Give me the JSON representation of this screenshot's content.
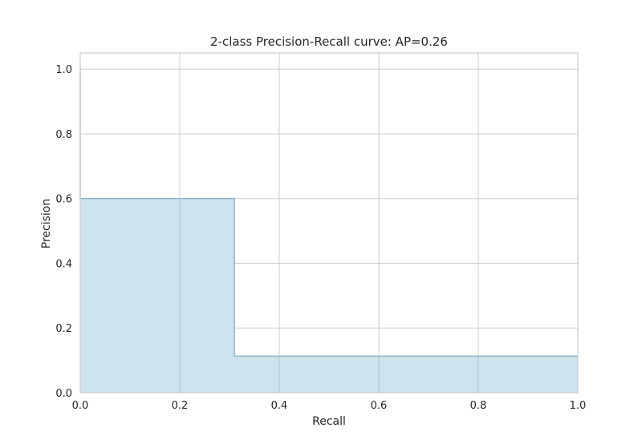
{
  "chart_data": {
    "type": "area",
    "title": "2-class Precision-Recall curve: AP=0.26",
    "xlabel": "Recall",
    "ylabel": "Precision",
    "xlim": [
      0.0,
      1.0
    ],
    "ylim": [
      0.0,
      1.05
    ],
    "xticks": [
      0.0,
      0.2,
      0.4,
      0.6,
      0.8,
      1.0
    ],
    "yticks": [
      0.0,
      0.2,
      0.4,
      0.6,
      0.8,
      1.0
    ],
    "xtick_labels": [
      "0.0",
      "0.2",
      "0.4",
      "0.6",
      "0.8",
      "1.0"
    ],
    "ytick_labels": [
      "0.0",
      "0.2",
      "0.4",
      "0.6",
      "0.8",
      "1.0"
    ],
    "grid": true,
    "step": "post",
    "series": [
      {
        "recall": [
          0.0,
          0.0,
          0.31,
          0.31,
          1.0
        ],
        "precision": [
          1.0,
          0.6,
          0.6,
          0.113,
          0.113
        ],
        "fill_color": "#c8e0ec",
        "line_color": "#8fb3c7"
      }
    ]
  },
  "colors": {
    "grid": "#cccccc",
    "fill": "#c8e0ec",
    "edge": "#8fb3c7",
    "text": "#262626"
  }
}
